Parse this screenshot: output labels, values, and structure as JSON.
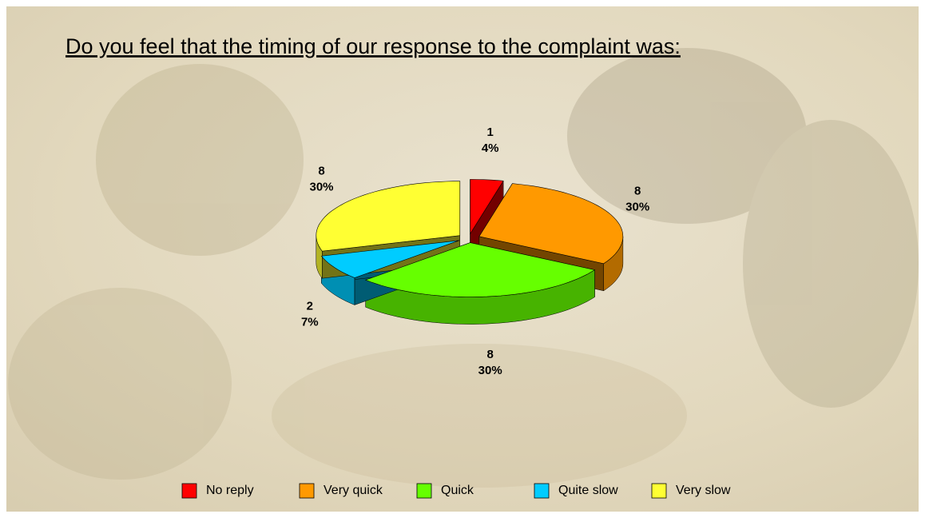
{
  "chart_data": {
    "type": "pie",
    "title": "Do you feel that the timing of our response to the complaint was:",
    "categories": [
      "No reply",
      "Very quick",
      "Quick",
      "Quite slow",
      "Very slow"
    ],
    "values": [
      1,
      8,
      8,
      2,
      8
    ],
    "percent_labels": [
      "4%",
      "30%",
      "30%",
      "7%",
      "30%"
    ],
    "colors": [
      "#ff0000",
      "#ff9900",
      "#66ff00",
      "#00ccff",
      "#ffff33"
    ],
    "legend": "bottom"
  }
}
